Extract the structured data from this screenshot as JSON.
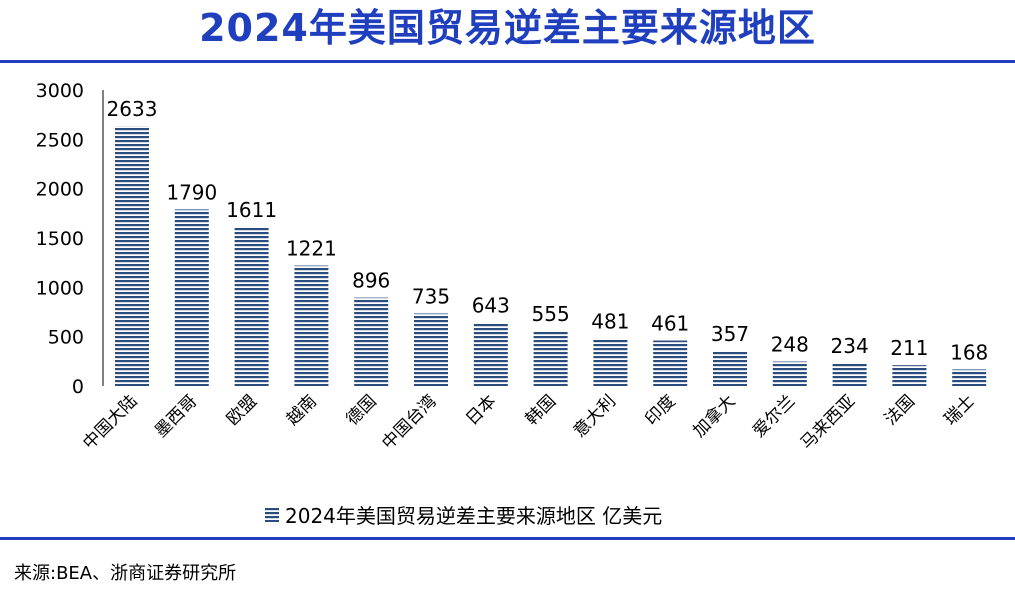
{
  "title": "2024年美国贸易逆差主要来源地区",
  "source": "来源:BEA、浙商证券研究所",
  "colors": {
    "accent": "#1f3fbf",
    "bar": "#2b4c7e"
  },
  "chart_data": {
    "type": "bar",
    "title": "2024年美国贸易逆差主要来源地区",
    "categories": [
      "中国大陆",
      "墨西哥",
      "欧盟",
      "越南",
      "德国",
      "中国台湾",
      "日本",
      "韩国",
      "意大利",
      "印度",
      "加拿大",
      "爱尔兰",
      "马来西亚",
      "法国",
      "瑞士"
    ],
    "series": [
      {
        "name": "2024年美国贸易逆差主要来源地区 亿美元",
        "values": [
          2633,
          1790,
          1611,
          1221,
          896,
          735,
          643,
          555,
          481,
          461,
          357,
          248,
          234,
          211,
          168
        ]
      }
    ],
    "ylim": [
      0,
      3000
    ],
    "yticks": [
      0,
      500,
      1000,
      1500,
      2000,
      2500,
      3000
    ],
    "grid": false,
    "legend_position": "bottom",
    "data_labels": true
  }
}
